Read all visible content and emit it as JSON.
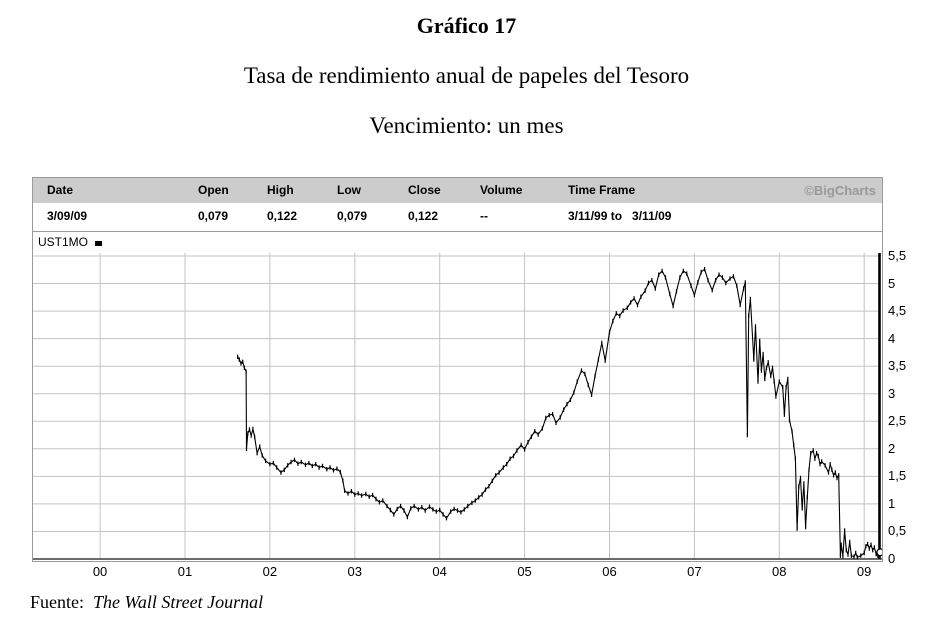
{
  "page": {
    "title": "Gráfico 17",
    "subtitle": "Tasa de rendimiento anual de papeles del Tesoro",
    "subtitle2": "Vencimiento: un mes",
    "source_label": "Fuente:",
    "source_value": "The Wall Street Journal"
  },
  "quote": {
    "columns": [
      "Date",
      "Open",
      "High",
      "Low",
      "Close",
      "Volume",
      "Time Frame"
    ],
    "values": [
      "3/09/09",
      "0,079",
      "0,122",
      "0,079",
      "0,122",
      "--"
    ],
    "time_frame": {
      "from": "3/11/99 to",
      "to": "3/11/09"
    },
    "brand": "©BigCharts"
  },
  "legend": {
    "symbol": "UST1MO"
  },
  "colors": {
    "header_band": "#cccccc",
    "brand_gray": "#999999",
    "grid_gray": "#c3c3c3",
    "series_black": "#000000"
  },
  "chart_data": {
    "type": "line",
    "title": "UST1MO - US Treasury 1-month yield, daily",
    "xlabel": "",
    "ylabel": "",
    "grid": true,
    "legend_position": "top-left",
    "x_axis": {
      "range": [
        1999.21,
        2009.21
      ],
      "ticks": [
        "00",
        "01",
        "02",
        "03",
        "04",
        "05",
        "06",
        "07",
        "08",
        "09"
      ],
      "tick_years": [
        2000,
        2001,
        2002,
        2003,
        2004,
        2005,
        2006,
        2007,
        2008,
        2009
      ]
    },
    "y_axis": {
      "side": "right",
      "range": [
        0,
        5.5
      ],
      "ticks": [
        "5,5",
        "5",
        "4,5",
        "4",
        "3,5",
        "3",
        "2,5",
        "2",
        "1,5",
        "1",
        "0,5",
        "0"
      ],
      "tick_values": [
        5.5,
        5,
        4.5,
        4,
        3.5,
        3,
        2.5,
        2,
        1.5,
        1,
        0.5,
        0
      ]
    },
    "series": [
      {
        "name": "UST1MO",
        "color": "#000000",
        "points": [
          [
            2001.62,
            3.67
          ],
          [
            2001.64,
            3.62
          ],
          [
            2001.66,
            3.55
          ],
          [
            2001.68,
            3.58
          ],
          [
            2001.7,
            3.47
          ],
          [
            2001.72,
            3.4
          ],
          [
            2001.725,
            2.0
          ],
          [
            2001.74,
            2.28
          ],
          [
            2001.76,
            2.35
          ],
          [
            2001.78,
            2.24
          ],
          [
            2001.8,
            2.36
          ],
          [
            2001.82,
            2.22
          ],
          [
            2001.85,
            1.92
          ],
          [
            2001.88,
            2.04
          ],
          [
            2001.91,
            1.88
          ],
          [
            2001.95,
            1.78
          ],
          [
            2002.0,
            1.72
          ],
          [
            2002.04,
            1.74
          ],
          [
            2002.08,
            1.66
          ],
          [
            2002.13,
            1.57
          ],
          [
            2002.17,
            1.62
          ],
          [
            2002.21,
            1.7
          ],
          [
            2002.25,
            1.76
          ],
          [
            2002.29,
            1.8
          ],
          [
            2002.33,
            1.73
          ],
          [
            2002.37,
            1.76
          ],
          [
            2002.42,
            1.71
          ],
          [
            2002.46,
            1.74
          ],
          [
            2002.5,
            1.69
          ],
          [
            2002.54,
            1.72
          ],
          [
            2002.58,
            1.66
          ],
          [
            2002.62,
            1.69
          ],
          [
            2002.67,
            1.63
          ],
          [
            2002.71,
            1.66
          ],
          [
            2002.75,
            1.61
          ],
          [
            2002.79,
            1.64
          ],
          [
            2002.83,
            1.58
          ],
          [
            2002.86,
            1.42
          ],
          [
            2002.88,
            1.24
          ],
          [
            2002.92,
            1.19
          ],
          [
            2002.96,
            1.23
          ],
          [
            2003.0,
            1.17
          ],
          [
            2003.04,
            1.19
          ],
          [
            2003.08,
            1.15
          ],
          [
            2003.13,
            1.18
          ],
          [
            2003.17,
            1.13
          ],
          [
            2003.21,
            1.16
          ],
          [
            2003.25,
            1.09
          ],
          [
            2003.29,
            1.03
          ],
          [
            2003.33,
            1.06
          ],
          [
            2003.38,
            0.96
          ],
          [
            2003.42,
            0.89
          ],
          [
            2003.46,
            0.81
          ],
          [
            2003.5,
            0.91
          ],
          [
            2003.54,
            0.96
          ],
          [
            2003.58,
            0.88
          ],
          [
            2003.62,
            0.76
          ],
          [
            2003.66,
            0.92
          ],
          [
            2003.7,
            0.96
          ],
          [
            2003.75,
            0.9
          ],
          [
            2003.79,
            0.94
          ],
          [
            2003.83,
            0.88
          ],
          [
            2003.88,
            0.95
          ],
          [
            2003.92,
            0.9
          ],
          [
            2003.96,
            0.86
          ],
          [
            2004.0,
            0.89
          ],
          [
            2004.04,
            0.81
          ],
          [
            2004.08,
            0.74
          ],
          [
            2004.13,
            0.86
          ],
          [
            2004.17,
            0.91
          ],
          [
            2004.21,
            0.88
          ],
          [
            2004.25,
            0.85
          ],
          [
            2004.29,
            0.9
          ],
          [
            2004.33,
            0.96
          ],
          [
            2004.38,
            1.02
          ],
          [
            2004.42,
            1.06
          ],
          [
            2004.46,
            1.12
          ],
          [
            2004.5,
            1.17
          ],
          [
            2004.54,
            1.26
          ],
          [
            2004.58,
            1.32
          ],
          [
            2004.62,
            1.42
          ],
          [
            2004.66,
            1.52
          ],
          [
            2004.7,
            1.57
          ],
          [
            2004.75,
            1.66
          ],
          [
            2004.79,
            1.72
          ],
          [
            2004.83,
            1.82
          ],
          [
            2004.87,
            1.87
          ],
          [
            2004.91,
            1.97
          ],
          [
            2004.96,
            2.07
          ],
          [
            2005.0,
            1.99
          ],
          [
            2005.04,
            2.12
          ],
          [
            2005.08,
            2.22
          ],
          [
            2005.12,
            2.32
          ],
          [
            2005.16,
            2.26
          ],
          [
            2005.21,
            2.37
          ],
          [
            2005.25,
            2.56
          ],
          [
            2005.29,
            2.61
          ],
          [
            2005.33,
            2.63
          ],
          [
            2005.37,
            2.47
          ],
          [
            2005.42,
            2.57
          ],
          [
            2005.46,
            2.71
          ],
          [
            2005.5,
            2.81
          ],
          [
            2005.54,
            2.89
          ],
          [
            2005.58,
            3.02
          ],
          [
            2005.62,
            3.22
          ],
          [
            2005.67,
            3.42
          ],
          [
            2005.71,
            3.36
          ],
          [
            2005.75,
            3.16
          ],
          [
            2005.79,
            2.98
          ],
          [
            2005.83,
            3.32
          ],
          [
            2005.87,
            3.62
          ],
          [
            2005.91,
            3.92
          ],
          [
            2005.95,
            3.6
          ],
          [
            2006.0,
            4.12
          ],
          [
            2006.04,
            4.32
          ],
          [
            2006.08,
            4.46
          ],
          [
            2006.12,
            4.41
          ],
          [
            2006.16,
            4.51
          ],
          [
            2006.21,
            4.56
          ],
          [
            2006.25,
            4.66
          ],
          [
            2006.29,
            4.73
          ],
          [
            2006.33,
            4.61
          ],
          [
            2006.37,
            4.76
          ],
          [
            2006.42,
            4.87
          ],
          [
            2006.46,
            5.01
          ],
          [
            2006.5,
            5.06
          ],
          [
            2006.54,
            4.91
          ],
          [
            2006.58,
            5.16
          ],
          [
            2006.62,
            5.23
          ],
          [
            2006.66,
            5.11
          ],
          [
            2006.71,
            4.81
          ],
          [
            2006.75,
            4.59
          ],
          [
            2006.79,
            4.86
          ],
          [
            2006.83,
            5.11
          ],
          [
            2006.87,
            5.23
          ],
          [
            2006.91,
            5.18
          ],
          [
            2006.96,
            4.96
          ],
          [
            2007.0,
            4.79
          ],
          [
            2007.04,
            5.02
          ],
          [
            2007.08,
            5.21
          ],
          [
            2007.12,
            5.26
          ],
          [
            2007.16,
            5.06
          ],
          [
            2007.21,
            4.88
          ],
          [
            2007.25,
            5.06
          ],
          [
            2007.29,
            5.16
          ],
          [
            2007.33,
            5.11
          ],
          [
            2007.37,
            5.01
          ],
          [
            2007.42,
            5.09
          ],
          [
            2007.46,
            5.13
          ],
          [
            2007.5,
            4.96
          ],
          [
            2007.54,
            4.61
          ],
          [
            2007.58,
            4.91
          ],
          [
            2007.6,
            5.02
          ],
          [
            2007.625,
            2.25
          ],
          [
            2007.64,
            4.42
          ],
          [
            2007.66,
            4.72
          ],
          [
            2007.7,
            3.62
          ],
          [
            2007.72,
            4.22
          ],
          [
            2007.75,
            3.22
          ],
          [
            2007.77,
            3.96
          ],
          [
            2007.79,
            3.42
          ],
          [
            2007.81,
            3.72
          ],
          [
            2007.83,
            3.27
          ],
          [
            2007.85,
            3.47
          ],
          [
            2007.87,
            3.57
          ],
          [
            2007.9,
            3.32
          ],
          [
            2007.92,
            3.47
          ],
          [
            2007.94,
            3.22
          ],
          [
            2007.96,
            2.95
          ],
          [
            2008.0,
            3.22
          ],
          [
            2008.04,
            3.12
          ],
          [
            2008.06,
            2.62
          ],
          [
            2008.08,
            3.12
          ],
          [
            2008.1,
            3.27
          ],
          [
            2008.12,
            2.52
          ],
          [
            2008.15,
            2.32
          ],
          [
            2008.17,
            2.07
          ],
          [
            2008.19,
            1.82
          ],
          [
            2008.21,
            0.55
          ],
          [
            2008.23,
            1.32
          ],
          [
            2008.25,
            1.47
          ],
          [
            2008.27,
            0.92
          ],
          [
            2008.29,
            1.37
          ],
          [
            2008.31,
            0.58
          ],
          [
            2008.33,
            1.12
          ],
          [
            2008.35,
            1.62
          ],
          [
            2008.37,
            1.92
          ],
          [
            2008.4,
            1.97
          ],
          [
            2008.42,
            1.82
          ],
          [
            2008.44,
            1.92
          ],
          [
            2008.46,
            1.87
          ],
          [
            2008.48,
            1.72
          ],
          [
            2008.5,
            1.77
          ],
          [
            2008.54,
            1.7
          ],
          [
            2008.58,
            1.57
          ],
          [
            2008.6,
            1.72
          ],
          [
            2008.62,
            1.62
          ],
          [
            2008.64,
            1.52
          ],
          [
            2008.66,
            1.57
          ],
          [
            2008.68,
            1.47
          ],
          [
            2008.7,
            1.52
          ],
          [
            2008.72,
            0.06
          ],
          [
            2008.73,
            0.26
          ],
          [
            2008.75,
            0.05
          ],
          [
            2008.77,
            0.52
          ],
          [
            2008.79,
            0.16
          ],
          [
            2008.81,
            0.08
          ],
          [
            2008.83,
            0.31
          ],
          [
            2008.85,
            0.06
          ],
          [
            2008.88,
            0.04
          ],
          [
            2008.9,
            0.11
          ],
          [
            2008.92,
            0.03
          ],
          [
            2008.96,
            0.06
          ],
          [
            2009.0,
            0.11
          ],
          [
            2009.02,
            0.23
          ],
          [
            2009.04,
            0.27
          ],
          [
            2009.06,
            0.19
          ],
          [
            2009.08,
            0.26
          ],
          [
            2009.1,
            0.16
          ],
          [
            2009.12,
            0.21
          ],
          [
            2009.14,
            0.09
          ],
          [
            2009.16,
            0.06
          ],
          [
            2009.19,
            0.122
          ]
        ],
        "end_marker": "open-circle",
        "last_close": 0.122
      }
    ]
  }
}
